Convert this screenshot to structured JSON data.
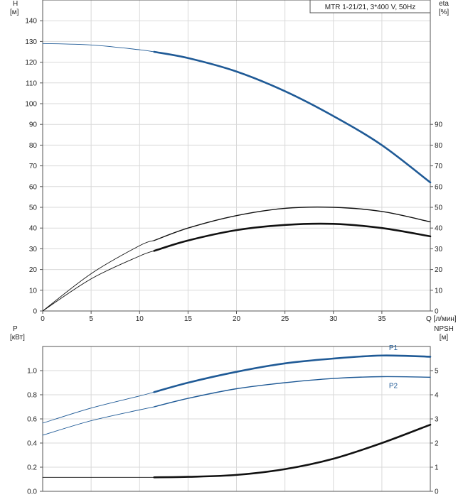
{
  "chart_data": [
    {
      "id": "top",
      "type": "line",
      "title": "MTR 1-21/21, 3*400 V, 50Hz",
      "xlabel": "Q [л/мин]",
      "ylabel_left_name": "H",
      "ylabel_left_unit": "[м]",
      "ylabel_right_name": "eta",
      "ylabel_right_unit": "[%]",
      "xlim": [
        0,
        40
      ],
      "ylim_left": [
        0,
        150
      ],
      "ylim_right": [
        0,
        150
      ],
      "x_ticks": [
        0,
        5,
        10,
        15,
        20,
        25,
        30,
        35
      ],
      "y_ticks_left": [
        0,
        10,
        20,
        30,
        40,
        50,
        60,
        70,
        80,
        90,
        100,
        110,
        120,
        130,
        140
      ],
      "y_ticks_right": [
        0,
        10,
        20,
        30,
        40,
        50,
        60,
        70,
        80,
        90
      ],
      "duty_start_x": 11.5,
      "grid": true,
      "series": [
        {
          "axis": "left",
          "color": "#1f5a96",
          "width": 2.6,
          "x": [
            0,
            5,
            10,
            11.5,
            15,
            20,
            25,
            30,
            35,
            40
          ],
          "y": [
            129,
            128.3,
            126,
            125,
            122,
            115.5,
            106,
            94,
            80,
            62
          ]
        },
        {
          "axis": "right",
          "color": "#111111",
          "width": 1.4,
          "x": [
            0,
            5,
            10,
            11.5,
            15,
            20,
            25,
            30,
            35,
            40
          ],
          "y": [
            0,
            18,
            31.5,
            34,
            40,
            46,
            49.5,
            50,
            48,
            43
          ]
        },
        {
          "axis": "right",
          "color": "#111111",
          "width": 2.6,
          "x": [
            0,
            5,
            10,
            11.5,
            15,
            20,
            25,
            30,
            35,
            40
          ],
          "y": [
            0,
            15.5,
            26.5,
            29,
            34,
            39,
            41.5,
            42,
            40,
            36
          ]
        }
      ]
    },
    {
      "id": "bottom",
      "type": "line",
      "ylabel_left_name": "P",
      "ylabel_left_unit": "[кВт]",
      "ylabel_right_name": "NPSH",
      "ylabel_right_unit": "[м]",
      "xlim": [
        0,
        40
      ],
      "ylim_left": [
        0,
        1.2
      ],
      "ylim_right": [
        0,
        6
      ],
      "y_ticks_left": [
        0.0,
        0.2,
        0.4,
        0.6,
        0.8,
        1.0
      ],
      "y_ticks_right": [
        0,
        1,
        2,
        3,
        4,
        5
      ],
      "duty_start_x": 11.5,
      "grid": true,
      "series": [
        {
          "name": "P1",
          "axis": "left",
          "color": "#1f5a96",
          "width": 2.6,
          "x": [
            0,
            5,
            10,
            11.5,
            15,
            20,
            25,
            30,
            35,
            40
          ],
          "y": [
            0.565,
            0.69,
            0.79,
            0.822,
            0.9,
            0.99,
            1.06,
            1.1,
            1.125,
            1.115
          ]
        },
        {
          "name": "P2",
          "axis": "left",
          "color": "#1f5a96",
          "width": 1.4,
          "x": [
            0,
            5,
            10,
            11.5,
            15,
            20,
            25,
            30,
            35,
            40
          ],
          "y": [
            0.465,
            0.585,
            0.675,
            0.7,
            0.77,
            0.85,
            0.9,
            0.935,
            0.95,
            0.945
          ]
        },
        {
          "axis": "right",
          "color": "#111111",
          "width": 2.6,
          "x": [
            0,
            5,
            10,
            11.5,
            15,
            20,
            25,
            30,
            35,
            40
          ],
          "y": [
            0.58,
            0.58,
            0.58,
            0.58,
            0.6,
            0.68,
            0.92,
            1.35,
            2.0,
            2.76
          ]
        }
      ]
    }
  ]
}
